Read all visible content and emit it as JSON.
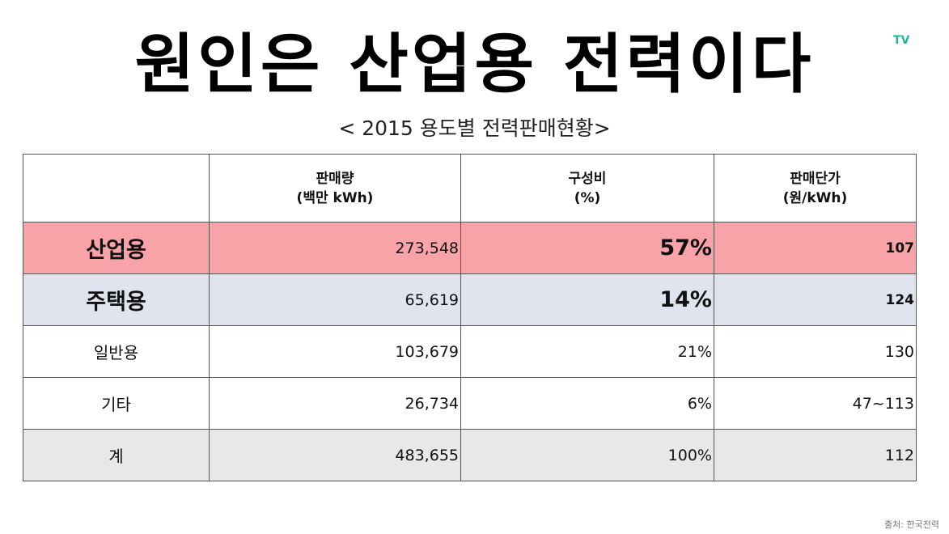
{
  "title": "원인은 산업용 전력이다",
  "logo": "TV",
  "subtitle": "< 2015 용도별 전력판매현황>",
  "table": {
    "headers": [
      {
        "line1": "",
        "line2": ""
      },
      {
        "line1": "판매량",
        "line2": "(백만 kWh)"
      },
      {
        "line1": "구성비",
        "line2": "(%)"
      },
      {
        "line1": "판매단가",
        "line2": "(원/kWh)"
      }
    ],
    "rows": [
      {
        "label": "산업용",
        "volume": "273,548",
        "share": "57%",
        "price": "107",
        "color": "#f8a3a8"
      },
      {
        "label": "주택용",
        "volume": "65,619",
        "share": "14%",
        "price": "124",
        "color": "#dfe4ee"
      },
      {
        "label": "일반용",
        "volume": "103,679",
        "share": "21%",
        "price": "130"
      },
      {
        "label": "기타",
        "volume": "26,734",
        "share": "6%",
        "price": "47~113"
      },
      {
        "label": "계",
        "volume": "483,655",
        "share": "100%",
        "price": "112",
        "color": "#e8e8e8"
      }
    ]
  },
  "source": "출처: 한국전력"
}
